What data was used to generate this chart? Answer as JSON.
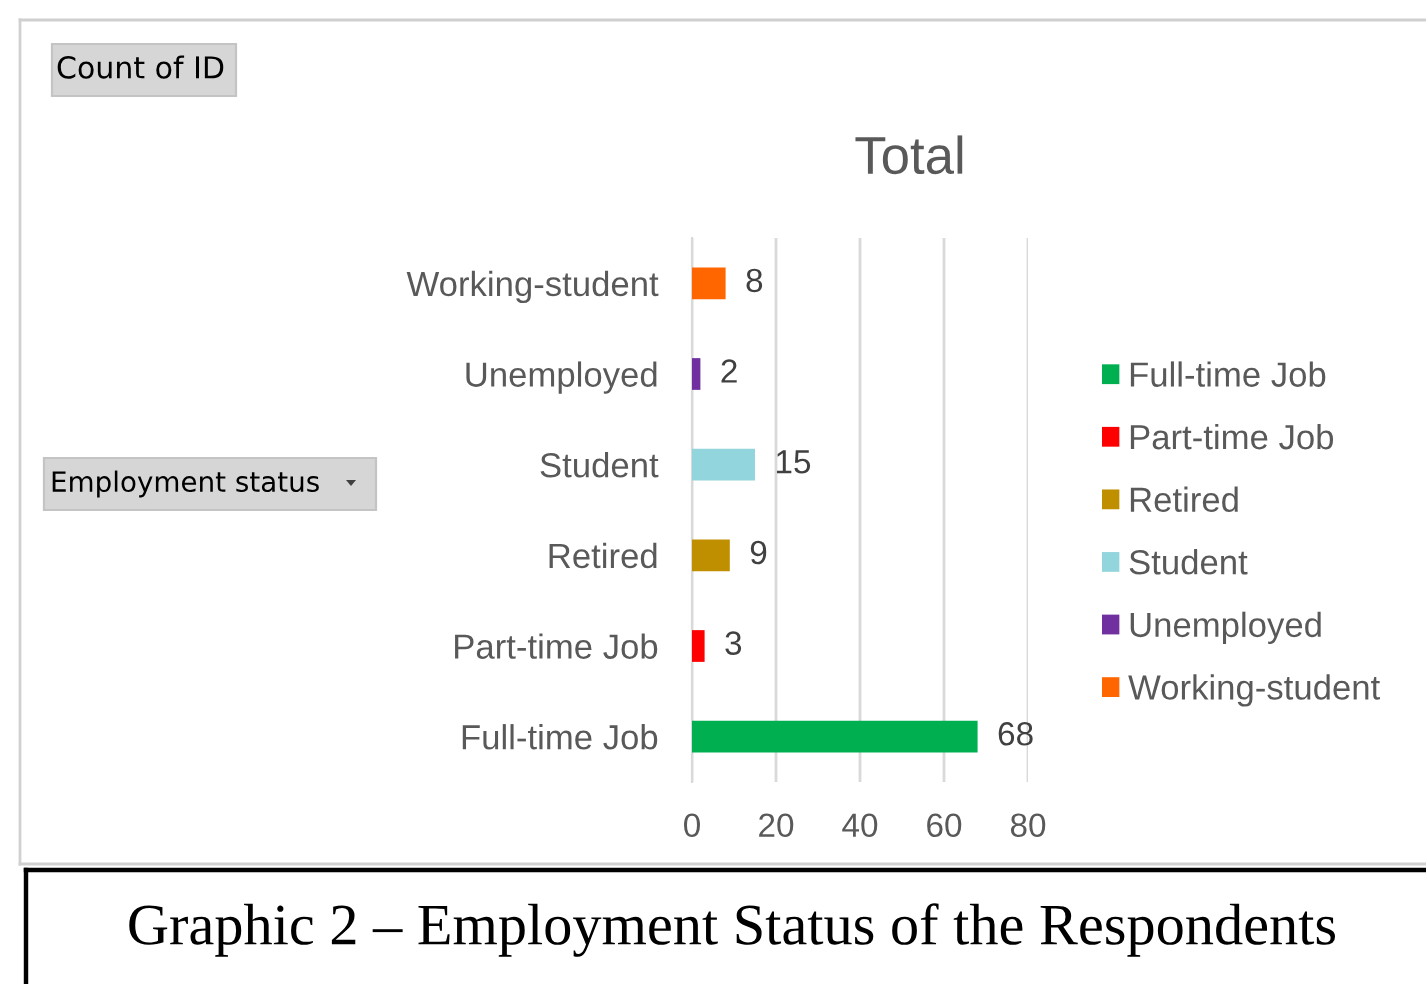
{
  "chart_data": {
    "type": "bar",
    "orientation": "horizontal",
    "title": "Total",
    "ylabel": "Employment status",
    "categories": [
      "Working-student",
      "Unemployed",
      "Student",
      "Retired",
      "Part-time Job",
      "Full-time Job"
    ],
    "series": [
      {
        "name": "Full-time Job",
        "color": "#00b050",
        "values": [
          null,
          null,
          null,
          null,
          null,
          68
        ]
      },
      {
        "name": "Part-time Job",
        "color": "#ff0000",
        "values": [
          null,
          null,
          null,
          null,
          3,
          null
        ]
      },
      {
        "name": "Retired",
        "color": "#bf8f00",
        "values": [
          null,
          null,
          null,
          9,
          null,
          null
        ]
      },
      {
        "name": "Student",
        "color": "#92d5dc",
        "values": [
          null,
          null,
          15,
          null,
          null,
          null
        ]
      },
      {
        "name": "Unemployed",
        "color": "#7030a0",
        "values": [
          null,
          2,
          null,
          null,
          null,
          null
        ]
      },
      {
        "name": "Working-student",
        "color": "#ff6600",
        "values": [
          8,
          null,
          null,
          null,
          null,
          null
        ]
      }
    ],
    "xlim": [
      0,
      80
    ],
    "xticks": [
      0,
      20,
      40,
      60,
      80
    ],
    "grid": "x",
    "legend": "right",
    "data_labels": true,
    "annotations": [
      "Count of ID",
      "Graphic 2 – Employment Status of the Respondents"
    ]
  }
}
